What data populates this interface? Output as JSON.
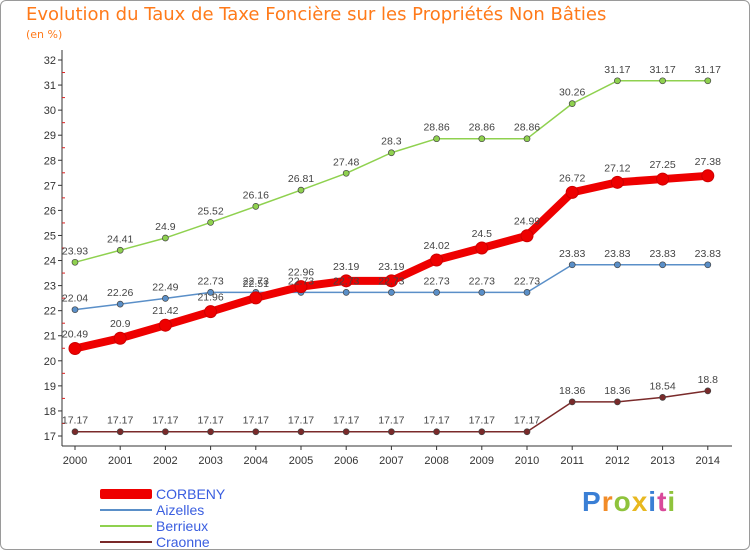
{
  "chart_data": {
    "type": "line",
    "title": "Evolution du Taux de Taxe Foncière sur les Propriétés Non Bâties",
    "subtitle": "(en %)",
    "x": [
      "2000",
      "2001",
      "2002",
      "2003",
      "2004",
      "2005",
      "2006",
      "2007",
      "2008",
      "2009",
      "2010",
      "2011",
      "2012",
      "2013",
      "2014"
    ],
    "yticks": [
      17,
      18,
      19,
      20,
      21,
      22,
      23,
      24,
      25,
      26,
      27,
      28,
      29,
      30,
      31,
      32
    ],
    "ylim": [
      17,
      32
    ],
    "grid": false,
    "legend_position": "bottom-left",
    "series": [
      {
        "name": "CORBENY",
        "color": "#ee0000",
        "values": [
          20.49,
          20.9,
          21.42,
          21.96,
          22.51,
          22.96,
          23.19,
          23.19,
          24.02,
          24.5,
          24.99,
          26.72,
          27.12,
          27.25,
          27.38
        ],
        "labels": [
          "20.49",
          "20.9",
          "21.42",
          "21.96",
          "22.51",
          "22.96",
          "23.19",
          "23.19",
          "24.02",
          "24.5",
          "24.99",
          "26.72",
          "27.12",
          "27.25",
          "27.38"
        ]
      },
      {
        "name": "Aizelles",
        "color": "#5a8fc8",
        "values": [
          22.04,
          22.26,
          22.49,
          22.73,
          22.73,
          22.73,
          22.73,
          22.73,
          22.73,
          22.73,
          22.73,
          23.83,
          23.83,
          23.83,
          23.83
        ],
        "labels": [
          "22.04",
          "22.26",
          "22.49",
          "22.73",
          "22.73",
          "22.73",
          "22.73",
          "22.73",
          "22.73",
          "22.73",
          "22.73",
          "23.83",
          "23.83",
          "23.83",
          "23.83"
        ]
      },
      {
        "name": "Berrieux",
        "color": "#8fd14f",
        "values": [
          23.93,
          24.41,
          24.9,
          25.52,
          26.16,
          26.81,
          27.48,
          28.3,
          28.86,
          28.86,
          28.86,
          30.26,
          31.17,
          31.17,
          31.17
        ],
        "labels": [
          "23.93",
          "24.41",
          "24.9",
          "25.52",
          "26.16",
          "26.81",
          "27.48",
          "28.3",
          "28.86",
          "28.86",
          "28.86",
          "30.26",
          "31.17",
          "31.17",
          "31.17"
        ]
      },
      {
        "name": "Craonne",
        "color": "#7a2a2a",
        "values": [
          17.17,
          17.17,
          17.17,
          17.17,
          17.17,
          17.17,
          17.17,
          17.17,
          17.17,
          17.17,
          17.17,
          18.36,
          18.36,
          18.54,
          18.8
        ],
        "labels": [
          "17.17",
          "17.17",
          "17.17",
          "17.17",
          "17.17",
          "17.17",
          "17.17",
          "17.17",
          "17.17",
          "17.17",
          "17.17",
          "18.36",
          "18.36",
          "18.54",
          "18.8"
        ]
      }
    ]
  },
  "brand": {
    "text": "Proxiti"
  }
}
